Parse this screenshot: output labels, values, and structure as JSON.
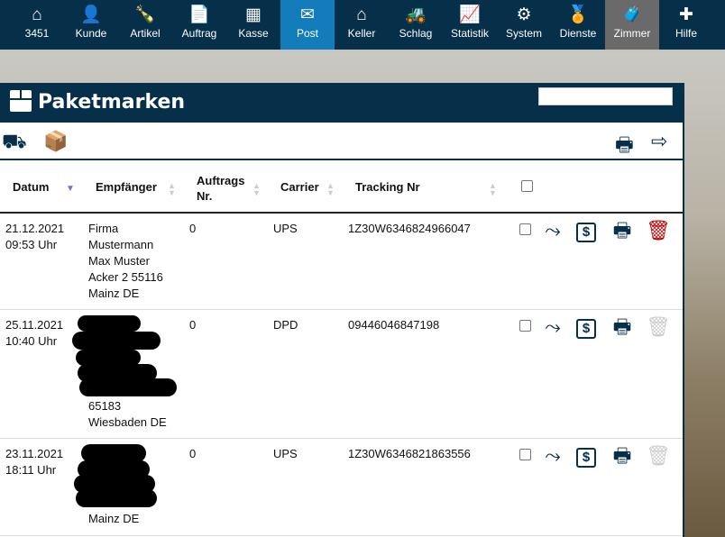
{
  "nav": [
    {
      "label": "3451",
      "icon": "home-icon",
      "glyph": "⌂"
    },
    {
      "label": "Kunde",
      "icon": "user-icon",
      "glyph": "👤"
    },
    {
      "label": "Artikel",
      "icon": "bottle-icon",
      "glyph": "🍾"
    },
    {
      "label": "Auftrag",
      "icon": "document-icon",
      "glyph": "📄"
    },
    {
      "label": "Kasse",
      "icon": "cash-register-icon",
      "glyph": "▦"
    },
    {
      "label": "Post",
      "icon": "envelope-icon",
      "glyph": "✉"
    },
    {
      "label": "Keller",
      "icon": "warehouse-icon",
      "glyph": "⌂"
    },
    {
      "label": "Schlag",
      "icon": "tractor-icon",
      "glyph": "🚜"
    },
    {
      "label": "Statistik",
      "icon": "chart-line-icon",
      "glyph": "📈"
    },
    {
      "label": "System",
      "icon": "gears-icon",
      "glyph": "⚙"
    },
    {
      "label": "Dienste",
      "icon": "medal-icon",
      "glyph": "🏅"
    },
    {
      "label": "Zimmer",
      "icon": "suitcase-icon",
      "glyph": "🧳"
    },
    {
      "label": "Hilfe",
      "icon": "first-aid-icon",
      "glyph": "✚"
    }
  ],
  "active_nav": "Post",
  "panel": {
    "title": "Paketmarken",
    "search_value": ""
  },
  "table": {
    "headers": {
      "datum": "Datum",
      "empfaenger": "Empfänger",
      "auftrag": "Auftrags Nr.",
      "carrier": "Carrier",
      "tracking": "Tracking Nr"
    },
    "rows": [
      {
        "date": "21.12.2021",
        "time": "09:53 Uhr",
        "recipient": [
          "Firma",
          "Mustermann",
          "Max Muster",
          "Acker 2 55116",
          "Mainz DE"
        ],
        "order": "0",
        "carrier": "UPS",
        "tracking": "1Z30W6346824966047",
        "deletable": true
      },
      {
        "date": "25.11.2021",
        "time": "10:40 Uhr",
        "recipient": [
          "65183",
          "Wiesbaden DE"
        ],
        "order": "0",
        "carrier": "DPD",
        "tracking": "09446046847198",
        "deletable": false
      },
      {
        "date": "23.11.2021",
        "time": "18:11 Uhr",
        "recipient": [
          "Mainz DE"
        ],
        "order": "0",
        "carrier": "UPS",
        "tracking": "1Z30W6346821863556",
        "deletable": false
      }
    ]
  },
  "colors": {
    "nav": "#062f4a",
    "active": "#137dbb",
    "delete": "#c00000",
    "disabled": "#cccccc"
  }
}
